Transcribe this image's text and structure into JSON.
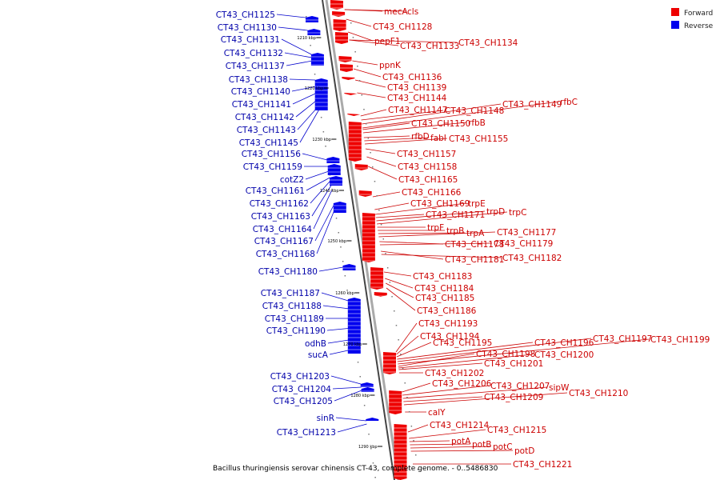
{
  "legend": [
    {
      "label": "Forward",
      "color": "#ee0000"
    },
    {
      "label": "Reverse",
      "color": "#0000ee"
    }
  ],
  "caption": "Bacillus thuringiensis serovar chinensis CT-43, complete genome. - 0..5486830",
  "ticks": [
    "1210 kbp",
    "1220 kbp",
    "1230 kbp",
    "1240 kbp",
    "1250 kbp",
    "1260 kbp",
    "1270 kbp",
    "1280 kbp",
    "1290 kbp"
  ],
  "forward_labels": [
    "mecA",
    "cls",
    "CT43_CH1128",
    "pepF1",
    "CT43_CH1133",
    "CT43_CH1134",
    "ppnK",
    "CT43_CH1136",
    "CT43_CH1139",
    "CT43_CH1144",
    "CT43_CH1147",
    "CT43_CH1148",
    "CT43_CH1149",
    "rfbC",
    "CT43_CH1150",
    "rfbB",
    "rfbD",
    "fabI",
    "CT43_CH1155",
    "CT43_CH1157",
    "CT43_CH1158",
    "CT43_CH1165",
    "CT43_CH1166",
    "CT43_CH1169",
    "trpE",
    "CT43_CH1171",
    "trpD",
    "trpC",
    "trpF",
    "trpB",
    "trpA",
    "CT43_CH1177",
    "CT43_CH1178",
    "CT43_CH1179",
    "CT43_CH1181",
    "CT43_CH1182",
    "CT43_CH1183",
    "CT43_CH1184",
    "CT43_CH1185",
    "CT43_CH1186",
    "CT43_CH1193",
    "CT43_CH1194",
    "CT43_CH1195",
    "CT43_CH1196",
    "CT43_CH1197",
    "CT43_CH1199",
    "CT43_CH1198",
    "CT43_CH1200",
    "CT43_CH1201",
    "CT43_CH1202",
    "CT43_CH1206",
    "CT43_CH1207",
    "sipW",
    "CT43_CH1209",
    "CT43_CH1210",
    "calY",
    "CT43_CH1214",
    "CT43_CH1215",
    "potA",
    "potB",
    "potC",
    "potD",
    "CT43_CH1221"
  ],
  "reverse_labels": [
    "CT43_CH1125",
    "CT43_CH1130",
    "CT43_CH1131",
    "CT43_CH1132",
    "CT43_CH1137",
    "CT43_CH1138",
    "CT43_CH1140",
    "CT43_CH1141",
    "CT43_CH1142",
    "CT43_CH1143",
    "CT43_CH1145",
    "CT43_CH1156",
    "CT43_CH1159",
    "cotZ2",
    "CT43_CH1161",
    "CT43_CH1162",
    "CT43_CH1163",
    "CT43_CH1164",
    "CT43_CH1167",
    "CT43_CH1168",
    "CT43_CH1180",
    "CT43_CH1187",
    "CT43_CH1188",
    "CT43_CH1189",
    "CT43_CH1190",
    "odhB",
    "sucA",
    "CT43_CH1203",
    "CT43_CH1204",
    "CT43_CH1205",
    "sinR",
    "CT43_CH1213"
  ]
}
